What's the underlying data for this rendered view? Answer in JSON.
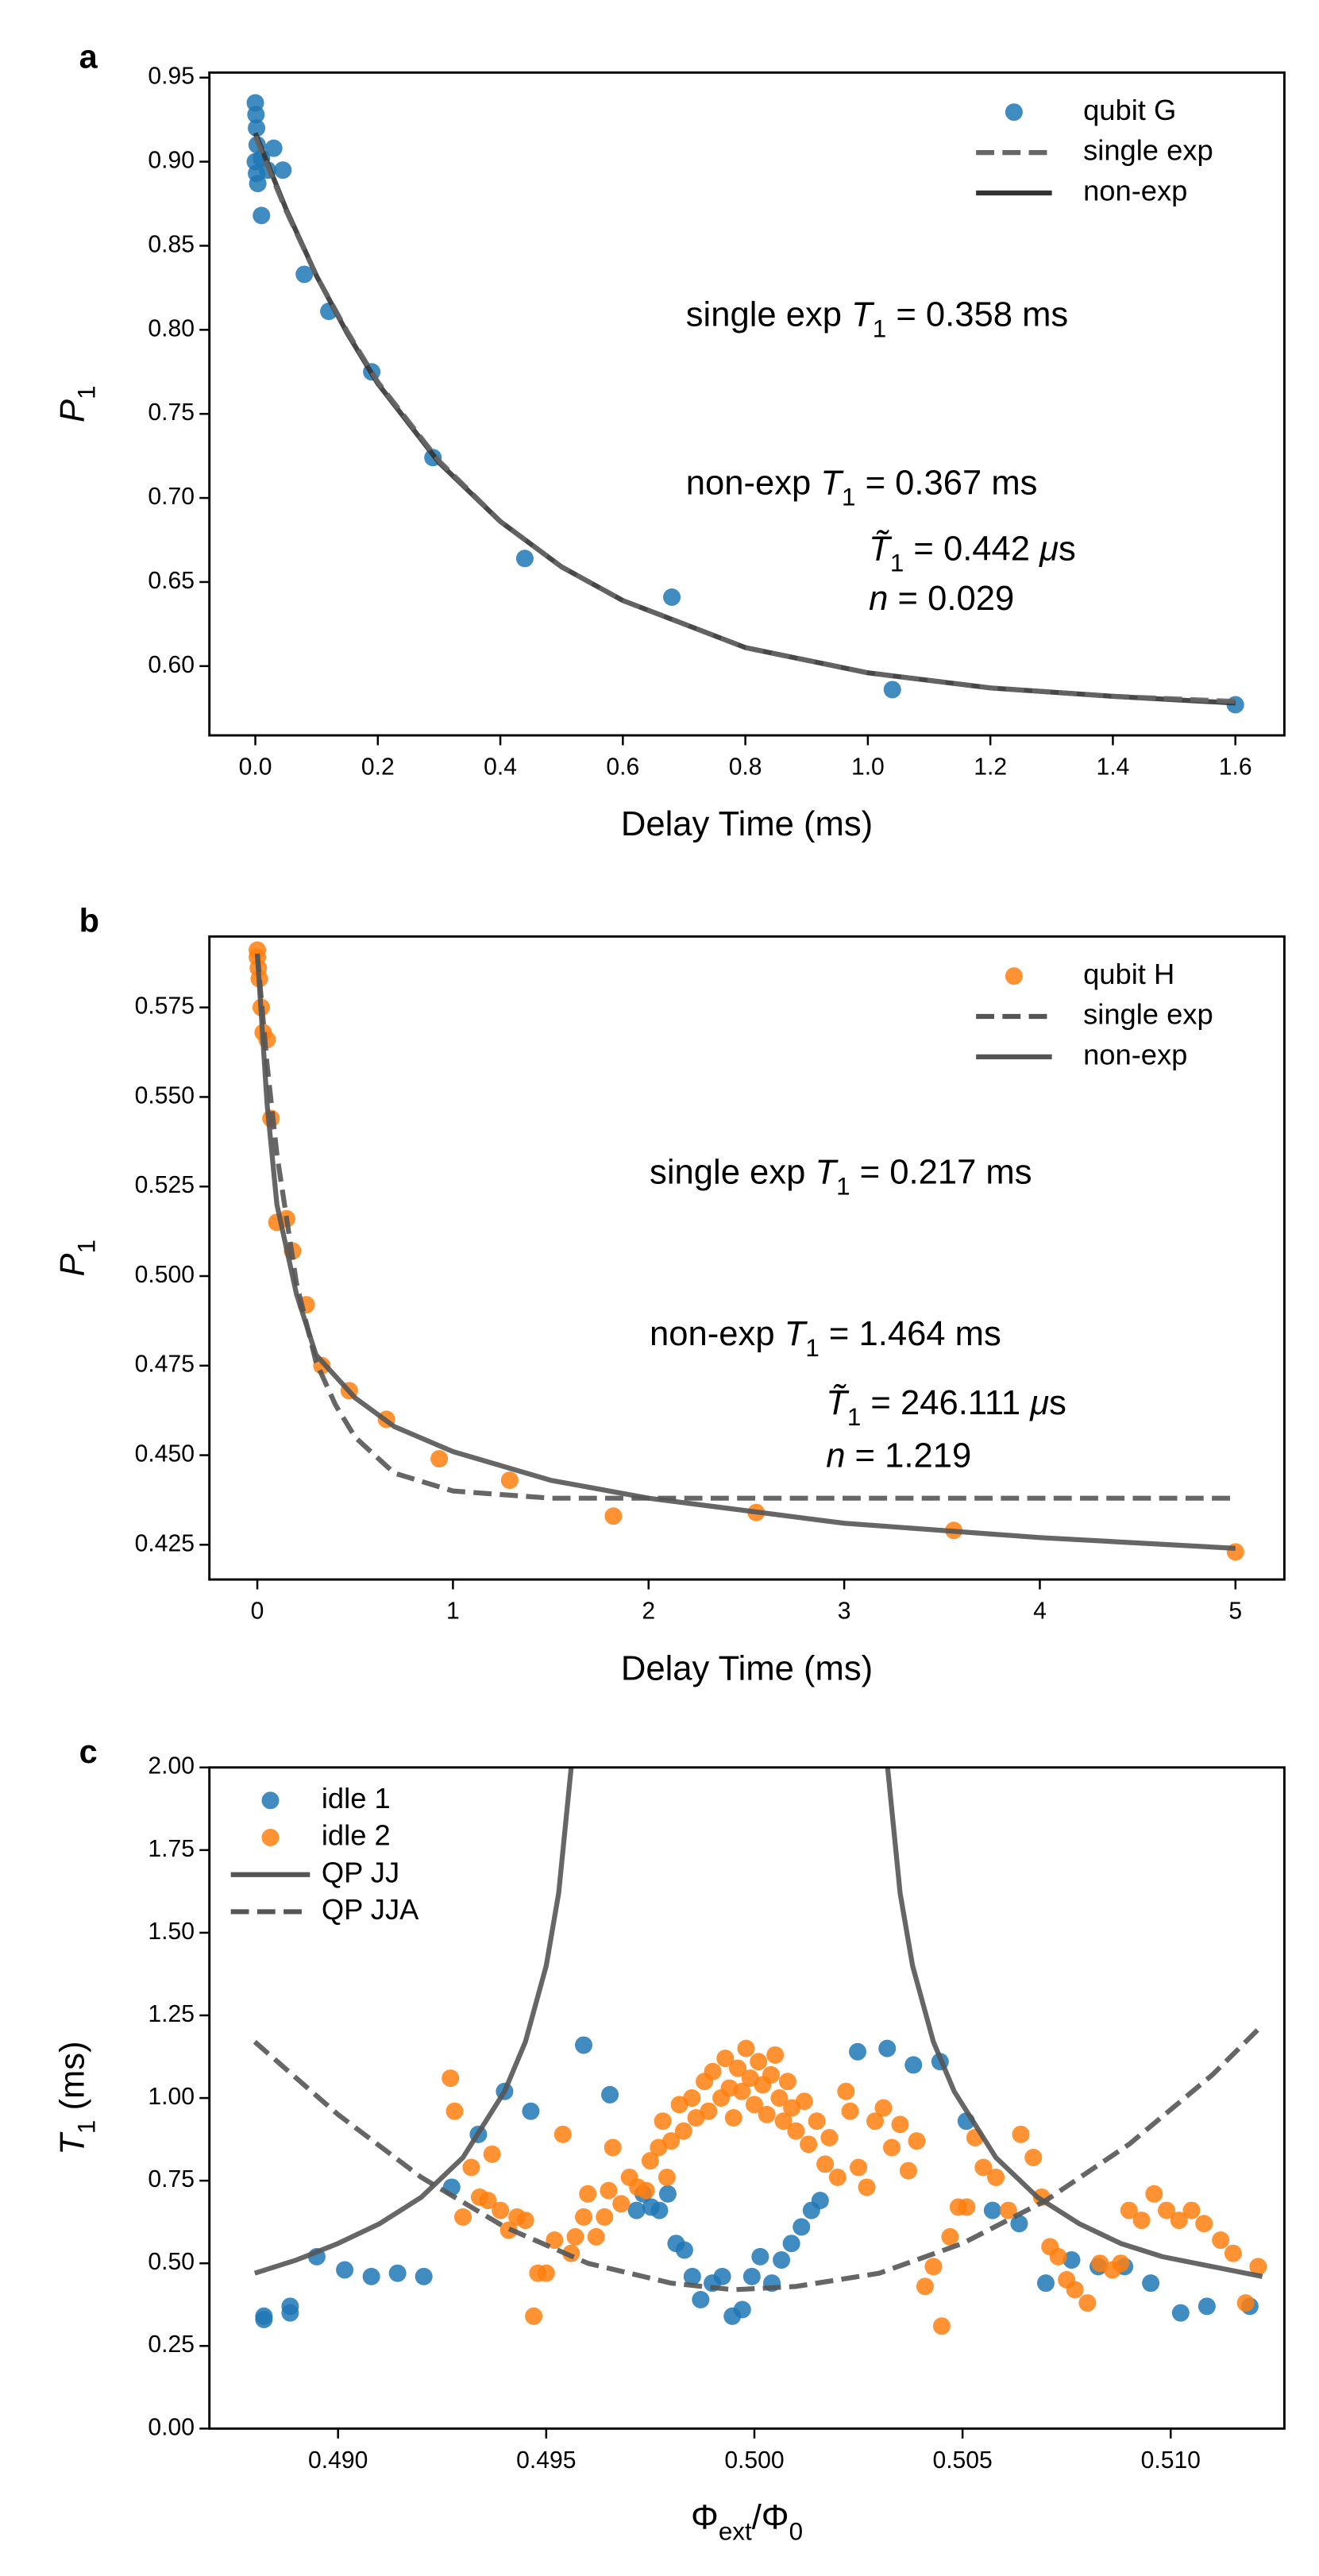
{
  "chart_data": [
    {
      "type": "scatter",
      "panel_label": "a",
      "xlabel": [
        {
          "text": "Delay Time (ms)",
          "style": "normal"
        }
      ],
      "ylabel": [
        {
          "text": "P",
          "style": "italic"
        },
        {
          "text": "1",
          "style": "sub"
        }
      ],
      "xlim": [
        -0.075,
        1.68
      ],
      "ylim": [
        0.5588,
        0.953
      ],
      "xticks": [
        {
          "value": 0,
          "label": "0.0"
        },
        0.2,
        0.4,
        0.6,
        0.8,
        {
          "value": 1,
          "label": "1.0"
        },
        1.2,
        1.4,
        1.6
      ],
      "yticks": [
        {
          "value": 0.6,
          "label": "0.60"
        },
        0.65,
        {
          "value": 0.7,
          "label": "0.70"
        },
        0.75,
        {
          "value": 0.8,
          "label": "0.80"
        },
        0.85,
        {
          "value": 0.9,
          "label": "0.90"
        },
        0.95
      ],
      "legend": "upper right",
      "series": [
        {
          "name": "qubit G",
          "type": "scatter",
          "color": "#1f77b4",
          "x": [
            0.0,
            0.001,
            0.002,
            0.003,
            0.0,
            0.002,
            0.004,
            0.01,
            0.02,
            0.03,
            0.045,
            0.01,
            0.08,
            0.12,
            0.19,
            0.29,
            0.44,
            0.68,
            1.04,
            1.6
          ],
          "values": [
            0.935,
            0.928,
            0.92,
            0.91,
            0.9,
            0.893,
            0.887,
            0.902,
            0.895,
            0.908,
            0.895,
            0.868,
            0.833,
            0.811,
            0.775,
            0.724,
            0.664,
            0.641,
            0.586,
            0.577
          ]
        },
        {
          "name": "non-exp",
          "type": "line",
          "linestyle": "solid",
          "color": "#333333",
          "x": [
            0,
            0.05,
            0.1,
            0.15,
            0.2,
            0.3,
            0.4,
            0.5,
            0.6,
            0.8,
            1.0,
            1.2,
            1.4,
            1.6
          ],
          "values": [
            0.917,
            0.872,
            0.832,
            0.798,
            0.768,
            0.721,
            0.686,
            0.659,
            0.639,
            0.611,
            0.596,
            0.587,
            0.582,
            0.578
          ]
        },
        {
          "name": "single exp",
          "type": "line",
          "linestyle": "dashed",
          "color": "#666666",
          "x": [
            0,
            0.05,
            0.1,
            0.15,
            0.2,
            0.3,
            0.4,
            0.5,
            0.6,
            0.8,
            1.0,
            1.2,
            1.4,
            1.6
          ],
          "values": [
            0.915,
            0.871,
            0.832,
            0.799,
            0.769,
            0.722,
            0.686,
            0.659,
            0.639,
            0.611,
            0.596,
            0.587,
            0.582,
            0.579
          ]
        }
      ],
      "legend_order": [
        0,
        2,
        1
      ],
      "annotations": [
        [
          {
            "text": "single exp ",
            "style": "normal"
          },
          {
            "text": "T",
            "style": "italic"
          },
          {
            "text": "1",
            "style": "sub"
          },
          {
            "text": " = 0.358 ms",
            "style": "normal"
          }
        ],
        [
          {
            "text": "non-exp ",
            "style": "normal"
          },
          {
            "text": "T",
            "style": "italic"
          },
          {
            "text": "1",
            "style": "sub"
          },
          {
            "text": " = 0.367 ms",
            "style": "normal"
          }
        ],
        [
          {
            "text": "T̃",
            "style": "italic"
          },
          {
            "text": "1",
            "style": "sub"
          },
          {
            "text": " = 0.442 ",
            "style": "normal"
          },
          {
            "text": "μ",
            "style": "italic"
          },
          {
            "text": "s",
            "style": "normal"
          }
        ],
        [
          {
            "text": "n",
            "style": "italic"
          },
          {
            "text": " = 0.029",
            "style": "normal"
          }
        ]
      ]
    },
    {
      "type": "scatter",
      "panel_label": "b",
      "xlabel": [
        {
          "text": "Delay Time (ms)",
          "style": "normal"
        }
      ],
      "ylabel": [
        {
          "text": "P",
          "style": "italic"
        },
        {
          "text": "1",
          "style": "sub"
        }
      ],
      "xlim": [
        -0.245,
        5.25
      ],
      "ylim": [
        0.4153,
        0.5948
      ],
      "xticks": [
        0,
        1,
        2,
        3,
        4,
        5
      ],
      "yticks": [
        0.425,
        {
          "value": 0.45,
          "label": "0.450"
        },
        0.475,
        {
          "value": 0.5,
          "label": "0.500"
        },
        0.525,
        {
          "value": 0.55,
          "label": "0.550"
        },
        0.575
      ],
      "legend": "upper right",
      "series": [
        {
          "name": "qubit H",
          "type": "scatter",
          "color": "#ff7f0e",
          "x": [
            0,
            0,
            0.005,
            0.01,
            0.02,
            0.03,
            0.05,
            0.07,
            0.1,
            0.15,
            0.18,
            0.25,
            0.33,
            0.47,
            0.66,
            0.93,
            1.29,
            1.82,
            2.55,
            3.56,
            5.0
          ],
          "values": [
            0.591,
            0.589,
            0.586,
            0.583,
            0.575,
            0.568,
            0.566,
            0.544,
            0.515,
            0.516,
            0.507,
            0.492,
            0.475,
            0.468,
            0.46,
            0.449,
            0.443,
            0.433,
            0.434,
            0.429,
            0.423
          ]
        },
        {
          "name": "single exp",
          "type": "line",
          "linestyle": "dashed",
          "color": "#555555",
          "x": [
            0,
            0.05,
            0.1,
            0.2,
            0.3,
            0.4,
            0.5,
            0.7,
            1.0,
            1.5,
            2,
            3,
            5
          ],
          "values": [
            0.59,
            0.559,
            0.534,
            0.498,
            0.476,
            0.464,
            0.455,
            0.445,
            0.44,
            0.438,
            0.438,
            0.438,
            0.438
          ]
        },
        {
          "name": "non-exp",
          "type": "line",
          "linestyle": "solid",
          "color": "#555555",
          "x": [
            0,
            0.05,
            0.1,
            0.2,
            0.3,
            0.5,
            0.7,
            1.0,
            1.5,
            2,
            3,
            4,
            5
          ],
          "values": [
            0.59,
            0.548,
            0.52,
            0.495,
            0.478,
            0.466,
            0.458,
            0.451,
            0.443,
            0.438,
            0.431,
            0.427,
            0.424
          ]
        }
      ],
      "legend_order": [
        0,
        1,
        2
      ],
      "annotations": [
        [
          {
            "text": "single exp ",
            "style": "normal"
          },
          {
            "text": "T",
            "style": "italic"
          },
          {
            "text": "1",
            "style": "sub"
          },
          {
            "text": " = 0.217 ms",
            "style": "normal"
          }
        ],
        [
          {
            "text": "non-exp ",
            "style": "normal"
          },
          {
            "text": "T",
            "style": "italic"
          },
          {
            "text": "1",
            "style": "sub"
          },
          {
            "text": " = 1.464 ms",
            "style": "normal"
          }
        ],
        [
          {
            "text": "T̃",
            "style": "italic"
          },
          {
            "text": "1",
            "style": "sub"
          },
          {
            "text": " = 246.111 ",
            "style": "normal"
          },
          {
            "text": "μ",
            "style": "italic"
          },
          {
            "text": "s",
            "style": "normal"
          }
        ],
        [
          {
            "text": "n",
            "style": "italic"
          },
          {
            "text": " = 1.219",
            "style": "normal"
          }
        ]
      ]
    },
    {
      "type": "scatter",
      "panel_label": "c",
      "xlabel": [
        {
          "text": "Φ",
          "style": "normal"
        },
        {
          "text": "ext",
          "style": "sub"
        },
        {
          "text": "/Φ",
          "style": "normal"
        },
        {
          "text": "0",
          "style": "sub"
        }
      ],
      "ylabel": [
        {
          "text": "T",
          "style": "italic"
        },
        {
          "text": "1",
          "style": "sub"
        },
        {
          "text": " (ms)",
          "style": "normal"
        }
      ],
      "xlim": [
        0.48691,
        0.51273
      ],
      "ylim": [
        0,
        2
      ],
      "xticks": [
        {
          "value": 0.49,
          "label": "0.490"
        },
        0.495,
        {
          "value": 0.5,
          "label": "0.500"
        },
        0.505,
        {
          "value": 0.51,
          "label": "0.510"
        }
      ],
      "yticks": [
        {
          "value": 0,
          "label": "0.00"
        },
        0.25,
        {
          "value": 0.5,
          "label": "0.50"
        },
        0.75,
        {
          "value": 1,
          "label": "1.00"
        },
        1.25,
        {
          "value": 1.5,
          "label": "1.50"
        },
        1.75,
        {
          "value": 2,
          "label": "2.00"
        }
      ],
      "legend": "upper left",
      "series": [
        {
          "name": "idle 1",
          "type": "scatter",
          "color": "#1f77b4",
          "x": [
            0.48822,
            0.48822,
            0.48885,
            0.48885,
            0.48949,
            0.49016,
            0.4908,
            0.49143,
            0.49206,
            0.49273,
            0.49337,
            0.494,
            0.49463,
            0.4959,
            0.49653,
            0.49717,
            0.49733,
            0.49752,
            0.49772,
            0.49792,
            0.49812,
            0.49832,
            0.49851,
            0.49871,
            0.49899,
            0.49923,
            0.49947,
            0.49971,
            0.49994,
            0.50014,
            0.50042,
            0.50065,
            0.50089,
            0.50113,
            0.50137,
            0.50158,
            0.50248,
            0.50319,
            0.50382,
            0.50446,
            0.50509,
            0.50572,
            0.50636,
            0.507,
            0.50762,
            0.50826,
            0.50889,
            0.50952,
            0.51024,
            0.51087,
            0.5119
          ],
          "values": [
            0.33,
            0.34,
            0.35,
            0.37,
            0.52,
            0.48,
            0.46,
            0.47,
            0.46,
            0.73,
            0.89,
            1.02,
            0.96,
            1.16,
            1.01,
            0.66,
            0.71,
            0.67,
            0.66,
            0.71,
            0.56,
            0.54,
            0.46,
            0.39,
            0.44,
            0.46,
            0.34,
            0.36,
            0.46,
            0.52,
            0.44,
            0.51,
            0.56,
            0.61,
            0.66,
            0.69,
            1.14,
            1.15,
            1.1,
            1.11,
            0.93,
            0.66,
            0.62,
            0.44,
            0.51,
            0.49,
            0.49,
            0.44,
            0.35,
            0.37,
            0.37
          ]
        },
        {
          "name": "idle 2",
          "type": "scatter",
          "color": "#ff7f0e",
          "x": [
            0.4927,
            0.4928,
            0.493,
            0.4932,
            0.4934,
            0.4936,
            0.4937,
            0.4939,
            0.4941,
            0.4943,
            0.4945,
            0.4947,
            0.4948,
            0.495,
            0.4952,
            0.4954,
            0.4956,
            0.4957,
            0.4959,
            0.496,
            0.4962,
            0.4964,
            0.4965,
            0.4966,
            0.4968,
            0.497,
            0.4972,
            0.4974,
            0.4975,
            0.4977,
            0.4978,
            0.4979,
            0.498,
            0.4982,
            0.4983,
            0.4985,
            0.4986,
            0.4988,
            0.4989,
            0.499,
            0.4992,
            0.4993,
            0.4994,
            0.4995,
            0.4996,
            0.4997,
            0.4998,
            0.4999,
            0.5,
            0.5001,
            0.5002,
            0.5003,
            0.5004,
            0.5005,
            0.5006,
            0.5007,
            0.5008,
            0.5009,
            0.501,
            0.5012,
            0.5013,
            0.5015,
            0.5017,
            0.5018,
            0.502,
            0.5022,
            0.5023,
            0.5025,
            0.5027,
            0.5029,
            0.5031,
            0.5033,
            0.5035,
            0.5037,
            0.5039,
            0.5041,
            0.5043,
            0.5045,
            0.5047,
            0.5049,
            0.5051,
            0.5053,
            0.5055,
            0.5058,
            0.5061,
            0.5064,
            0.5067,
            0.5069,
            0.5071,
            0.5073,
            0.5075,
            0.5077,
            0.508,
            0.5083,
            0.5086,
            0.5088,
            0.509,
            0.5093,
            0.5096,
            0.5099,
            0.5102,
            0.5105,
            0.5108,
            0.5112,
            0.5115,
            0.5118,
            0.5121
          ],
          "values": [
            1.06,
            0.96,
            0.64,
            0.79,
            0.7,
            0.69,
            0.83,
            0.66,
            0.6,
            0.64,
            0.63,
            0.34,
            0.47,
            0.47,
            0.57,
            0.89,
            0.53,
            0.58,
            0.64,
            0.71,
            0.58,
            0.64,
            0.72,
            0.85,
            0.68,
            0.76,
            0.73,
            0.72,
            0.81,
            0.85,
            0.93,
            0.76,
            0.87,
            0.98,
            0.9,
            1.0,
            0.94,
            1.05,
            0.96,
            1.08,
            1.0,
            1.12,
            1.03,
            0.94,
            1.09,
            1.02,
            1.15,
            1.06,
            0.98,
            1.11,
            1.04,
            0.95,
            1.07,
            1.13,
            1.0,
            0.93,
            1.05,
            0.97,
            0.9,
            0.99,
            0.86,
            0.93,
            0.8,
            0.88,
            0.76,
            1.02,
            0.96,
            0.79,
            0.73,
            0.93,
            0.97,
            0.85,
            0.92,
            0.78,
            0.87,
            0.43,
            0.49,
            0.31,
            0.58,
            0.67,
            0.67,
            0.88,
            0.79,
            0.76,
            0.66,
            0.89,
            0.82,
            0.7,
            0.55,
            0.52,
            0.45,
            0.42,
            0.38,
            0.5,
            0.48,
            0.5,
            0.66,
            0.63,
            0.71,
            0.66,
            0.63,
            0.66,
            0.62,
            0.57,
            0.53,
            0.38,
            0.49
          ]
        },
        {
          "name": "QP JJ",
          "type": "line",
          "linestyle": "solid",
          "color": "#555555",
          "x": [
            0.488,
            0.489,
            0.49,
            0.491,
            0.492,
            0.493,
            0.494,
            0.4945,
            0.495,
            0.4953,
            0.4956,
            0.4958,
            0.4994,
            0.503,
            0.5032,
            0.5035,
            0.5038,
            0.5043,
            0.5048,
            0.5058,
            0.5068,
            0.5078,
            0.5088,
            0.5098,
            0.511,
            0.5122
          ],
          "values": [
            0.47,
            0.51,
            0.56,
            0.62,
            0.7,
            0.82,
            1.02,
            1.17,
            1.4,
            1.62,
            2.0,
            2.4,
            null,
            2.4,
            2.0,
            1.62,
            1.4,
            1.17,
            1.02,
            0.82,
            0.7,
            0.62,
            0.56,
            0.52,
            0.49,
            0.46
          ]
        },
        {
          "name": "QP JJA",
          "type": "line",
          "linestyle": "dashed",
          "color": "#555555",
          "x": [
            0.488,
            0.49,
            0.492,
            0.494,
            0.496,
            0.498,
            0.4995,
            0.501,
            0.503,
            0.505,
            0.507,
            0.509,
            0.511,
            0.5122
          ],
          "values": [
            1.17,
            0.95,
            0.76,
            0.61,
            0.5,
            0.44,
            0.42,
            0.43,
            0.47,
            0.56,
            0.69,
            0.86,
            1.07,
            1.22
          ]
        }
      ],
      "legend_order": [
        0,
        1,
        2,
        3
      ],
      "annotations": []
    }
  ]
}
